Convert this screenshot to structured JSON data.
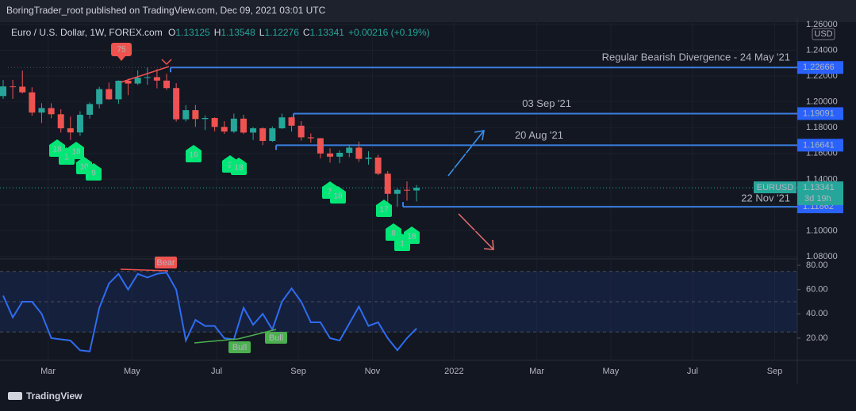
{
  "header": "BoringTrader_root published on TradingView.com, Dec 09, 2021 03:01 UTC",
  "footer": "TradingView",
  "chart_data": {
    "type": "candlestick",
    "symbol": "Euro / U.S. Dollar, 1W, FOREX.com",
    "ohlc": [
      {
        "label": "O",
        "value": 1.13125
      },
      {
        "label": "H",
        "value": 1.13548
      },
      {
        "label": "L",
        "value": 1.12276
      },
      {
        "label": "C",
        "value": 1.13341
      }
    ],
    "change": "+0.00216 (+0.19%)",
    "currency": "USD",
    "up_color": "#26a69a",
    "down_color": "#ef5350",
    "ylim": [
      1.0788,
      1.2655
    ],
    "yticks": [
      {
        "value": 1.26,
        "label": "1.26000"
      },
      {
        "value": 1.24,
        "label": "1.24000"
      },
      {
        "value": 1.22,
        "label": "1.22000"
      },
      {
        "value": 1.2,
        "label": "1.20000"
      },
      {
        "value": 1.18,
        "label": "1.18000"
      },
      {
        "value": 1.16,
        "label": "1.16000"
      },
      {
        "value": 1.14,
        "label": "1.14000"
      },
      {
        "value": 1.12,
        "label": "1.12000"
      },
      {
        "value": 1.1,
        "label": "1.10000"
      },
      {
        "value": 1.08,
        "label": "1.08000"
      }
    ],
    "xlim": [
      -0.33,
      82.6
    ],
    "xticks": [
      {
        "value": 4.67,
        "label": "Mar"
      },
      {
        "value": 13.4,
        "label": "May"
      },
      {
        "value": 22.2,
        "label": "Jul"
      },
      {
        "value": 30.7,
        "label": "Sep"
      },
      {
        "value": 38.4,
        "label": "Nov"
      },
      {
        "value": 46.9,
        "label": "2022"
      },
      {
        "value": 55.5,
        "label": "Mar"
      },
      {
        "value": 63.2,
        "label": "May"
      },
      {
        "value": 71.7,
        "label": "Jul"
      },
      {
        "value": 80.25,
        "label": "Sep"
      }
    ],
    "candles": [
      [
        1.2045,
        1.2169,
        1.2023,
        1.212
      ],
      [
        1.212,
        1.217,
        1.2023,
        1.2118
      ],
      [
        1.2118,
        1.2243,
        1.2066,
        1.2074
      ],
      [
        1.2074,
        1.2113,
        1.1893,
        1.1917
      ],
      [
        1.1917,
        1.199,
        1.1836,
        1.1952
      ],
      [
        1.1952,
        1.1989,
        1.1873,
        1.1904
      ],
      [
        1.1904,
        1.1943,
        1.1762,
        1.1795
      ],
      [
        1.1795,
        1.1886,
        1.1704,
        1.1763
      ],
      [
        1.1763,
        1.1927,
        1.1737,
        1.19
      ],
      [
        1.19,
        1.1995,
        1.187,
        1.1983
      ],
      [
        1.1983,
        1.2117,
        1.195,
        1.2099
      ],
      [
        1.2099,
        1.215,
        1.2016,
        1.202
      ],
      [
        1.202,
        1.2167,
        1.1986,
        1.2164
      ],
      [
        1.2164,
        1.2181,
        1.2052,
        1.2142
      ],
      [
        1.2142,
        1.2245,
        1.2131,
        1.2187
      ],
      [
        1.2187,
        1.2266,
        1.2133,
        1.2192
      ],
      [
        1.2192,
        1.2254,
        1.2105,
        1.2165
      ],
      [
        1.2165,
        1.2218,
        1.2093,
        1.2107
      ],
      [
        1.2107,
        1.2145,
        1.1847,
        1.1865
      ],
      [
        1.1865,
        1.1975,
        1.1848,
        1.1936
      ],
      [
        1.1936,
        1.1976,
        1.1807,
        1.1867
      ],
      [
        1.1867,
        1.1895,
        1.1781,
        1.1875
      ],
      [
        1.1875,
        1.188,
        1.1772,
        1.1806
      ],
      [
        1.1806,
        1.185,
        1.1752,
        1.177
      ],
      [
        1.177,
        1.1909,
        1.1759,
        1.187
      ],
      [
        1.187,
        1.19,
        1.1751,
        1.1762
      ],
      [
        1.1762,
        1.1805,
        1.1705,
        1.1795
      ],
      [
        1.1795,
        1.1803,
        1.1664,
        1.1697
      ],
      [
        1.1697,
        1.181,
        1.169,
        1.1795
      ],
      [
        1.1795,
        1.1909,
        1.179,
        1.188
      ],
      [
        1.188,
        1.1885,
        1.177,
        1.1815
      ],
      [
        1.1815,
        1.185,
        1.17,
        1.1725
      ],
      [
        1.1725,
        1.1755,
        1.1684,
        1.1718
      ],
      [
        1.1718,
        1.172,
        1.1563,
        1.16
      ],
      [
        1.16,
        1.164,
        1.1529,
        1.1575
      ],
      [
        1.1575,
        1.1624,
        1.1524,
        1.1605
      ],
      [
        1.1605,
        1.1669,
        1.1571,
        1.1645
      ],
      [
        1.1645,
        1.1692,
        1.1535,
        1.1558
      ],
      [
        1.1558,
        1.1617,
        1.1513,
        1.1568
      ],
      [
        1.1568,
        1.159,
        1.1432,
        1.1443
      ],
      [
        1.1443,
        1.1464,
        1.1186,
        1.1287
      ],
      [
        1.1287,
        1.1329,
        1.1186,
        1.1318
      ],
      [
        1.1318,
        1.1383,
        1.1234,
        1.1316
      ],
      [
        1.1313,
        1.1355,
        1.1228,
        1.1334
      ]
    ],
    "levels": [
      {
        "value": 1.22666,
        "price_label": "1.22666",
        "text": "Regular Bearish Divergence - 24 May '21"
      },
      {
        "value": 1.19091,
        "price_label": "1.19091",
        "text": "03 Sep '21"
      },
      {
        "value": 1.16641,
        "price_label": "1.16641",
        "text": "20 Aug '21"
      },
      {
        "value": 1.11862,
        "price_label": "1.11862",
        "text": "22 Nov '21"
      }
    ],
    "last_price": {
      "symbol": "EURUSD",
      "value": 1.13341,
      "label": "1.13341",
      "countdown": "3d 19h"
    },
    "annotations": {
      "bear_count": "75",
      "markers": [
        "18",
        "1",
        "18",
        "10",
        "9",
        "16",
        "2",
        "18",
        "1",
        "18",
        "17",
        "8",
        "1",
        "18"
      ]
    },
    "rsi": {
      "color": "#2f6cf0",
      "values": [
        55,
        37,
        50,
        50,
        40,
        20,
        19,
        18,
        10,
        9,
        45,
        65,
        73,
        60,
        73,
        70,
        73,
        74,
        60,
        18,
        35,
        30,
        30,
        20,
        19,
        45,
        31,
        40,
        27,
        50,
        61,
        50,
        33,
        33,
        20,
        18,
        32,
        46,
        30,
        33,
        20,
        10,
        20,
        28
      ],
      "ylim": [
        1.7,
        84.6
      ],
      "yticks": [
        {
          "value": 80,
          "label": "80.00"
        },
        {
          "value": 60,
          "label": "60.00"
        },
        {
          "value": 40,
          "label": "40.00"
        },
        {
          "value": 20,
          "label": "20.00"
        }
      ],
      "bands": [
        75,
        50,
        25
      ],
      "labels": [
        "Bear",
        "Bull",
        "Bull"
      ]
    }
  }
}
